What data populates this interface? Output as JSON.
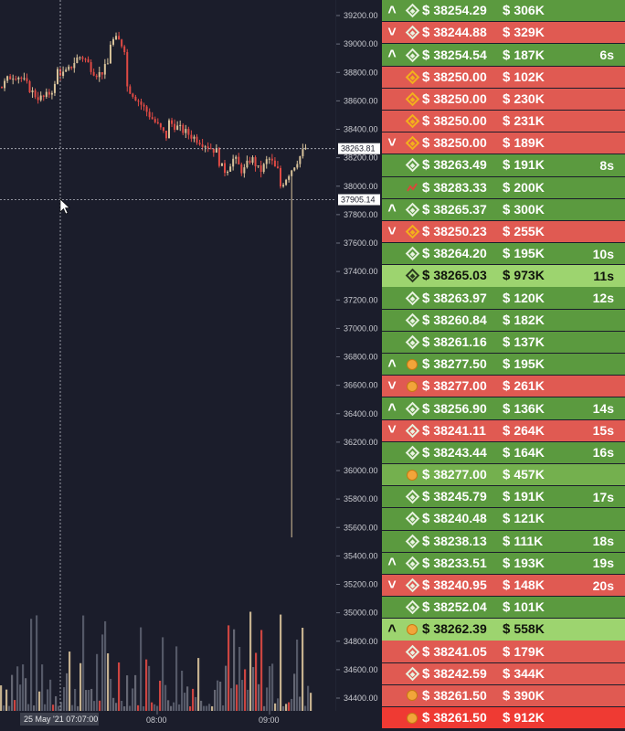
{
  "chart": {
    "price_labels": [
      "39200.00",
      "39000.00",
      "38800.00",
      "38600.00",
      "38400.00",
      "38200.00",
      "38000.00",
      "37800.00",
      "37600.00",
      "37400.00",
      "37200.00",
      "37000.00",
      "36800.00",
      "36600.00",
      "36400.00",
      "36200.00",
      "36000.00",
      "35800.00",
      "35600.00",
      "35400.00",
      "35200.00",
      "35000.00",
      "34800.00",
      "34600.00",
      "34400.00"
    ],
    "last_price_tag": "38263.81",
    "crosshair_price_tag": "37905.14",
    "time_labels": [
      "08:00",
      "09:00"
    ],
    "crosshair_time_tag": "25 May '21   07:07:00"
  },
  "trades": [
    {
      "side": "buy",
      "chevron": "up",
      "exchange": "binance",
      "price": "38254.29",
      "size": "306K",
      "age": "",
      "shade": "mid"
    },
    {
      "side": "sell",
      "chevron": "down",
      "exchange": "binance",
      "price": "38244.88",
      "size": "329K",
      "age": "",
      "shade": "mid"
    },
    {
      "side": "buy",
      "chevron": "up",
      "exchange": "binance",
      "price": "38254.54",
      "size": "187K",
      "age": "6s",
      "shade": "mid"
    },
    {
      "side": "sell",
      "chevron": "",
      "exchange": "binance-gold",
      "price": "38250.00",
      "size": "102K",
      "age": "",
      "shade": "mid"
    },
    {
      "side": "sell",
      "chevron": "",
      "exchange": "binance-gold",
      "price": "38250.00",
      "size": "230K",
      "age": "",
      "shade": "mid"
    },
    {
      "side": "sell",
      "chevron": "",
      "exchange": "binance-gold",
      "price": "38250.00",
      "size": "231K",
      "age": "",
      "shade": "mid"
    },
    {
      "side": "sell",
      "chevron": "down",
      "exchange": "binance-gold",
      "price": "38250.00",
      "size": "189K",
      "age": "",
      "shade": "mid"
    },
    {
      "side": "buy",
      "chevron": "",
      "exchange": "binance",
      "price": "38263.49",
      "size": "191K",
      "age": "8s",
      "shade": "mid"
    },
    {
      "side": "buy",
      "chevron": "",
      "exchange": "spark",
      "price": "38283.33",
      "size": "200K",
      "age": "",
      "shade": "mid"
    },
    {
      "side": "buy",
      "chevron": "up",
      "exchange": "binance",
      "price": "38265.37",
      "size": "300K",
      "age": "",
      "shade": "mid"
    },
    {
      "side": "sell",
      "chevron": "down",
      "exchange": "binance-gold",
      "price": "38250.23",
      "size": "255K",
      "age": "",
      "shade": "mid"
    },
    {
      "side": "buy",
      "chevron": "",
      "exchange": "binance",
      "price": "38264.20",
      "size": "195K",
      "age": "10s",
      "shade": "mid"
    },
    {
      "side": "buy",
      "chevron": "",
      "exchange": "binance",
      "price": "38265.03",
      "size": "973K",
      "age": "11s",
      "shade": "light"
    },
    {
      "side": "buy",
      "chevron": "",
      "exchange": "binance",
      "price": "38263.97",
      "size": "120K",
      "age": "12s",
      "shade": "mid"
    },
    {
      "side": "buy",
      "chevron": "",
      "exchange": "binance",
      "price": "38260.84",
      "size": "182K",
      "age": "",
      "shade": "mid"
    },
    {
      "side": "buy",
      "chevron": "",
      "exchange": "binance",
      "price": "38261.16",
      "size": "137K",
      "age": "",
      "shade": "mid"
    },
    {
      "side": "buy",
      "chevron": "up",
      "exchange": "coin",
      "price": "38277.50",
      "size": "195K",
      "age": "",
      "shade": "mid"
    },
    {
      "side": "sell",
      "chevron": "down",
      "exchange": "coin",
      "price": "38277.00",
      "size": "261K",
      "age": "",
      "shade": "mid"
    },
    {
      "side": "buy",
      "chevron": "up",
      "exchange": "binance",
      "price": "38256.90",
      "size": "136K",
      "age": "14s",
      "shade": "mid"
    },
    {
      "side": "sell",
      "chevron": "down",
      "exchange": "binance",
      "price": "38241.11",
      "size": "264K",
      "age": "15s",
      "shade": "mid"
    },
    {
      "side": "buy",
      "chevron": "",
      "exchange": "binance",
      "price": "38243.44",
      "size": "164K",
      "age": "16s",
      "shade": "mid"
    },
    {
      "side": "buy",
      "chevron": "",
      "exchange": "coin",
      "price": "38277.00",
      "size": "457K",
      "age": "",
      "shade": "lightmid"
    },
    {
      "side": "buy",
      "chevron": "",
      "exchange": "binance",
      "price": "38245.79",
      "size": "191K",
      "age": "17s",
      "shade": "mid"
    },
    {
      "side": "buy",
      "chevron": "",
      "exchange": "binance",
      "price": "38240.48",
      "size": "121K",
      "age": "",
      "shade": "mid"
    },
    {
      "side": "buy",
      "chevron": "",
      "exchange": "binance",
      "price": "38238.13",
      "size": "111K",
      "age": "18s",
      "shade": "mid"
    },
    {
      "side": "buy",
      "chevron": "up",
      "exchange": "binance",
      "price": "38233.51",
      "size": "193K",
      "age": "19s",
      "shade": "mid"
    },
    {
      "side": "sell",
      "chevron": "down",
      "exchange": "binance",
      "price": "38240.95",
      "size": "148K",
      "age": "20s",
      "shade": "mid"
    },
    {
      "side": "buy",
      "chevron": "",
      "exchange": "binance",
      "price": "38252.04",
      "size": "101K",
      "age": "",
      "shade": "mid"
    },
    {
      "side": "buy",
      "chevron": "up",
      "exchange": "coin",
      "price": "38262.39",
      "size": "558K",
      "age": "",
      "shade": "light"
    },
    {
      "side": "sell",
      "chevron": "",
      "exchange": "binance",
      "price": "38241.05",
      "size": "179K",
      "age": "",
      "shade": "mid"
    },
    {
      "side": "sell",
      "chevron": "",
      "exchange": "binance",
      "price": "38242.59",
      "size": "344K",
      "age": "",
      "shade": "mid"
    },
    {
      "side": "sell",
      "chevron": "",
      "exchange": "coin",
      "price": "38261.50",
      "size": "390K",
      "age": "",
      "shade": "mid"
    },
    {
      "side": "sell",
      "chevron": "",
      "exchange": "coin",
      "price": "38261.50",
      "size": "912K",
      "age": "",
      "shade": "bright"
    }
  ],
  "colors": {
    "buy_mid": "#5b9a3f",
    "buy_light": "#9dd46f",
    "buy_lightmid": "#74b04e",
    "sell_mid": "#e05a52",
    "sell_bright": "#ef3a33"
  }
}
